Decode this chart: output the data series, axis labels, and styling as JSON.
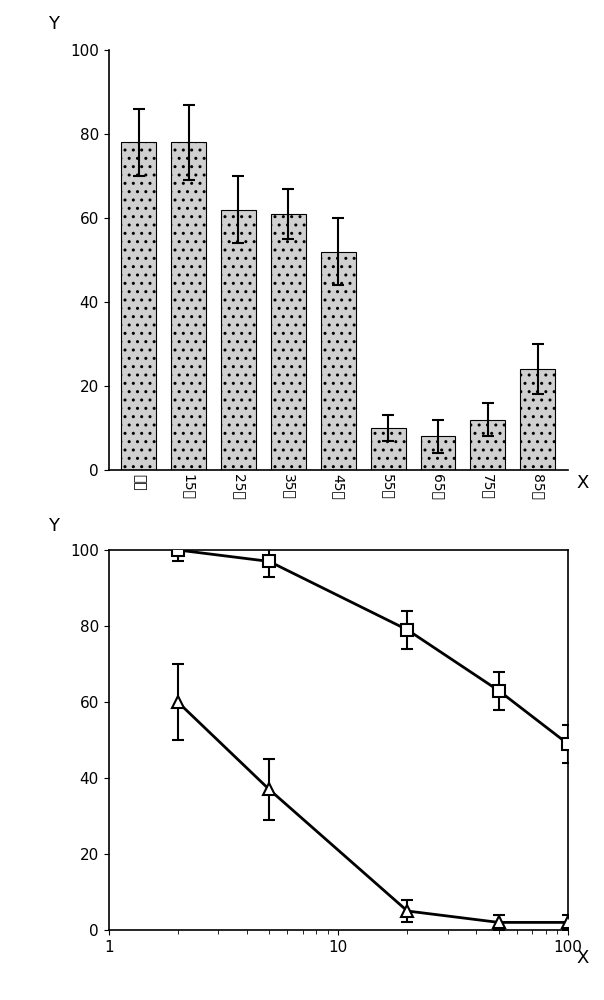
{
  "bar_categories": [
    "对照",
    "15戌",
    "25戌",
    "35戌",
    "45戌",
    "55戌",
    "65戌",
    "75戌",
    "85戌"
  ],
  "bar_values": [
    78,
    78,
    62,
    61,
    52,
    10,
    8,
    12,
    24
  ],
  "bar_errors": [
    8,
    9,
    8,
    6,
    8,
    3,
    4,
    4,
    6
  ],
  "bar_color": "#d0d0d0",
  "bar_edgecolor": "#000000",
  "bar_ylim": [
    0,
    100
  ],
  "bar_yticks": [
    0,
    20,
    40,
    60,
    80,
    100
  ],
  "bar_xlabel": "X",
  "bar_ylabel": "Y",
  "line_x": [
    2,
    5,
    20,
    50,
    100
  ],
  "line_sq_y": [
    100,
    97,
    79,
    63,
    49
  ],
  "line_sq_err": [
    3,
    4,
    5,
    5,
    5
  ],
  "line_tri_y": [
    60,
    37,
    5,
    2,
    2
  ],
  "line_tri_err": [
    10,
    8,
    3,
    2,
    2
  ],
  "line_xlim": [
    1,
    100
  ],
  "line_ylim": [
    0,
    100
  ],
  "line_yticks": [
    0,
    20,
    40,
    60,
    80,
    100
  ],
  "line_xlabel": "X",
  "line_ylabel": "Y",
  "line_color": "#000000"
}
